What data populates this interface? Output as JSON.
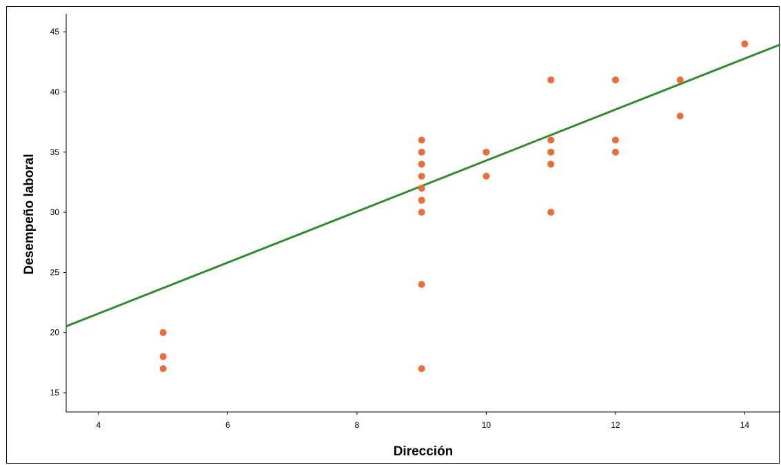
{
  "chart_data": {
    "type": "scatter",
    "xlabel": "Dirección",
    "ylabel": "Desempeño laboral",
    "xlim": [
      3.5,
      14.55
    ],
    "ylim": [
      13.4,
      46.5
    ],
    "x_ticks": [
      4,
      6,
      8,
      10,
      12,
      14
    ],
    "y_ticks": [
      15,
      20,
      25,
      30,
      35,
      40,
      45
    ],
    "grid": false,
    "legend": "none",
    "point_color": "#ED6B35",
    "line_color": "#2E8B2E",
    "points": [
      {
        "x": 5,
        "y": 20
      },
      {
        "x": 5,
        "y": 18
      },
      {
        "x": 5,
        "y": 17
      },
      {
        "x": 9,
        "y": 36
      },
      {
        "x": 9,
        "y": 35
      },
      {
        "x": 9,
        "y": 34
      },
      {
        "x": 9,
        "y": 33
      },
      {
        "x": 9,
        "y": 32
      },
      {
        "x": 9,
        "y": 31
      },
      {
        "x": 9,
        "y": 30
      },
      {
        "x": 9,
        "y": 24
      },
      {
        "x": 9,
        "y": 17
      },
      {
        "x": 10,
        "y": 35
      },
      {
        "x": 10,
        "y": 33
      },
      {
        "x": 11,
        "y": 41
      },
      {
        "x": 11,
        "y": 36
      },
      {
        "x": 11,
        "y": 35
      },
      {
        "x": 11,
        "y": 34
      },
      {
        "x": 11,
        "y": 30
      },
      {
        "x": 12,
        "y": 41
      },
      {
        "x": 12,
        "y": 36
      },
      {
        "x": 12,
        "y": 35
      },
      {
        "x": 13,
        "y": 41
      },
      {
        "x": 13,
        "y": 38
      },
      {
        "x": 14,
        "y": 44
      }
    ],
    "fit_line": {
      "slope": 2.12,
      "intercept": 13.1
    }
  }
}
